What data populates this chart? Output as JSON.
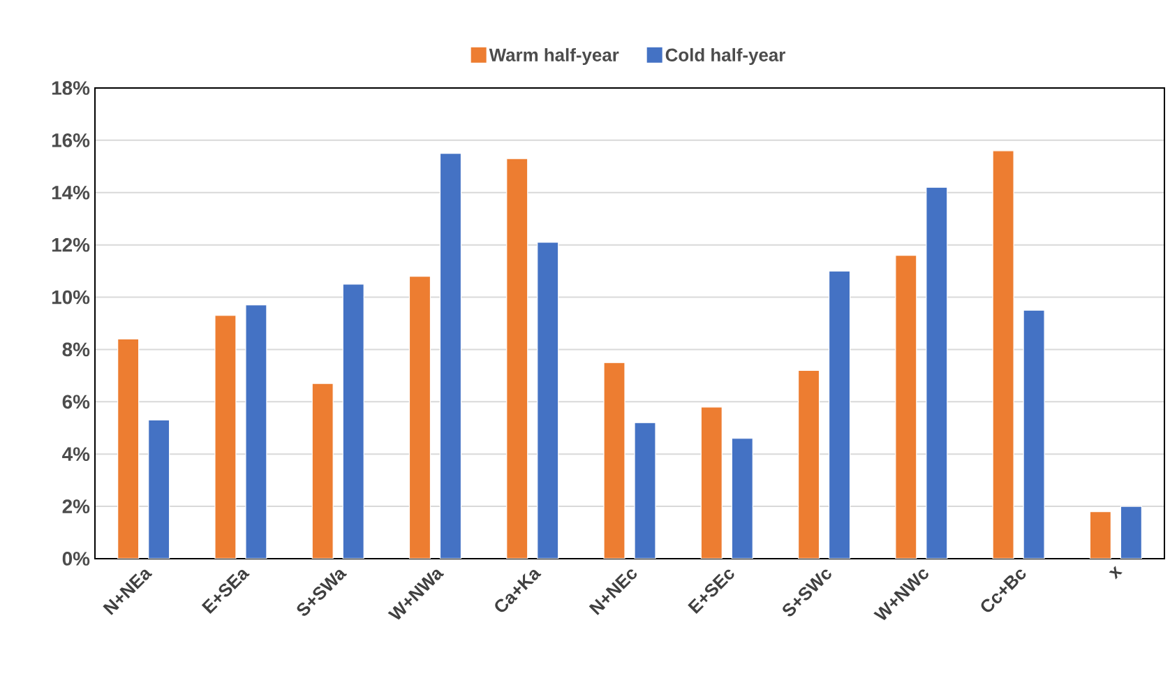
{
  "chart_data": {
    "type": "bar",
    "categories": [
      "N+NEa",
      "E+SEa",
      "S+SWa",
      "W+NWa",
      "Ca+Ka",
      "N+NEc",
      "E+SEc",
      "S+SWc",
      "W+NWc",
      "Cc+Bc",
      "x"
    ],
    "series": [
      {
        "name": "Warm half-year",
        "color": "#ed7d31",
        "values": [
          8.4,
          9.3,
          6.7,
          10.8,
          15.3,
          7.5,
          5.8,
          7.2,
          11.6,
          15.6,
          1.8
        ]
      },
      {
        "name": "Cold half-year",
        "color": "#4472c4",
        "values": [
          5.3,
          9.7,
          10.5,
          15.5,
          12.1,
          5.2,
          4.6,
          11.0,
          14.2,
          9.5,
          2.0
        ]
      }
    ],
    "ylim": [
      0,
      18
    ],
    "yticks": [
      {
        "value": 0,
        "label": "0%"
      },
      {
        "value": 2,
        "label": "2%"
      },
      {
        "value": 4,
        "label": "4%"
      },
      {
        "value": 6,
        "label": "6%"
      },
      {
        "value": 8,
        "label": "8%"
      },
      {
        "value": 10,
        "label": "10%"
      },
      {
        "value": 12,
        "label": "12%"
      },
      {
        "value": 14,
        "label": "14%"
      },
      {
        "value": 16,
        "label": "16%"
      },
      {
        "value": 18,
        "label": "18%"
      }
    ],
    "grid": "y",
    "legend": "top"
  }
}
